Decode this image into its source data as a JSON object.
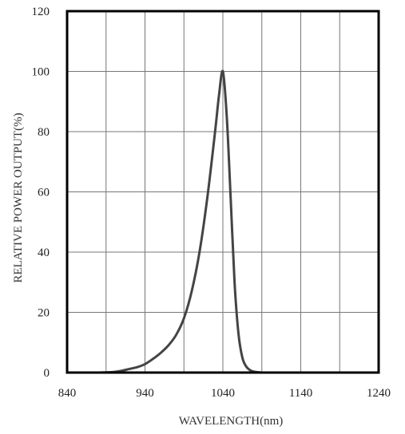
{
  "chart_data": {
    "type": "line",
    "title": "",
    "xlabel": "WAVELENGTH(nm)",
    "ylabel": "RELATIVE POWER OUTPUT(%)",
    "xlim": [
      840,
      1240
    ],
    "ylim": [
      0,
      120
    ],
    "x_ticks": [
      840,
      940,
      1040,
      1140,
      1240
    ],
    "y_ticks": [
      0,
      20,
      40,
      60,
      80,
      100,
      120
    ],
    "x_gridlines": [
      840,
      890,
      940,
      990,
      1040,
      1090,
      1140,
      1190,
      1240
    ],
    "y_gridlines": [
      0,
      20,
      40,
      60,
      80,
      100,
      120
    ],
    "grid": true,
    "legend": "none",
    "line_color": "#444444",
    "series": [
      {
        "x": [
          840,
          880,
          900,
          910,
          920,
          930,
          940,
          950,
          960,
          970,
          980,
          990,
          1000,
          1010,
          1020,
          1030,
          1035,
          1040,
          1045,
          1050,
          1055,
          1060,
          1065,
          1070,
          1075,
          1080,
          1090,
          1100,
          1140,
          1240
        ],
        "y": [
          0,
          0,
          0.2,
          0.6,
          1.2,
          1.8,
          2.8,
          4.5,
          6.5,
          9,
          12.5,
          18,
          27,
          40,
          58,
          80,
          92,
          100,
          85,
          58,
          30,
          13,
          5,
          2,
          0.8,
          0.3,
          0,
          0,
          0,
          0
        ]
      }
    ]
  }
}
